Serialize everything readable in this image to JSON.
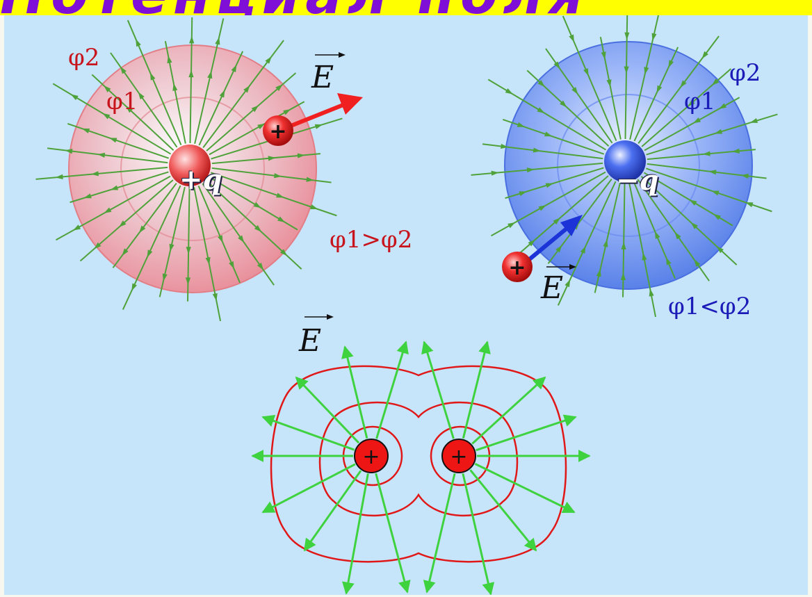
{
  "banner": {
    "text": "Потенциал поля"
  },
  "positive_charge": {
    "label": "+q",
    "outer_surface": "φ2",
    "inner_surface": "φ1",
    "field_label": "E",
    "relation": "φ1>φ2",
    "test_charge_symbol": "+"
  },
  "negative_charge": {
    "label": "−q",
    "outer_surface": "φ2",
    "inner_surface": "φ1",
    "field_label": "E",
    "relation": "φ1<φ2",
    "test_charge_symbol": "+"
  },
  "two_charges": {
    "field_label": "E",
    "charge_symbols": [
      "+",
      "+"
    ]
  },
  "colors": {
    "panel_background": "#c6e4fa",
    "banner_background": "#ffff00",
    "banner_text": "#7f0fd6",
    "positive_sphere": "#f08f98",
    "negative_sphere": "#5f86ee",
    "field_lines": "#4fa23a",
    "bright_field_lines": "#3fd23f",
    "equipotential_lines": "#e01818",
    "positive_label": "#c8141c",
    "negative_label": "#1b1bb8"
  }
}
